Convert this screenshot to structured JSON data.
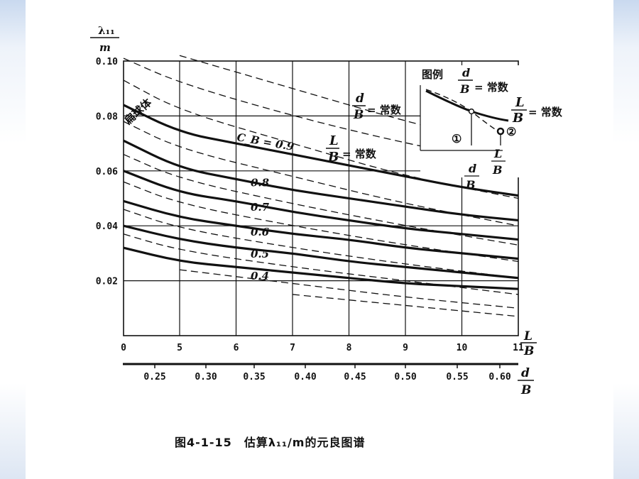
{
  "chart_data": {
    "type": "line",
    "caption": "图4-1-15　估算λ₁₁/m的元良图谱",
    "ylabel_top": "λ₁₁",
    "ylabel_bottom": "m",
    "xlabel_top": "L",
    "xlabel_bottom": "B",
    "x2label_top": "d",
    "x2label_bottom": "B",
    "x_ticks": [
      "0",
      "5",
      "6",
      "7",
      "8",
      "9",
      "10",
      "11"
    ],
    "x2_ticks": [
      "0.25",
      "0.30",
      "0.35",
      "0.40",
      "0.45",
      "0.50",
      "0.55",
      "0.60"
    ],
    "y_ticks": [
      "0.10",
      "0.08",
      "0.06",
      "0.04",
      "0.02"
    ],
    "ylim": [
      0,
      0.1
    ],
    "solid_curve_label": "L/B = 常数",
    "dashed_curve_label": "d/B = 常数",
    "cb_label": "C_B = 0.9",
    "ellipsoid_label": "扁球体",
    "series": [
      {
        "name": "0.9",
        "x": [
          0,
          5,
          6,
          7,
          8,
          9,
          10,
          11
        ],
        "values": [
          0.084,
          0.074,
          0.07,
          0.066,
          0.062,
          0.058,
          0.054,
          0.051
        ]
      },
      {
        "name": "0.8",
        "x": [
          0,
          5,
          6,
          7,
          8,
          9,
          10,
          11
        ],
        "values": [
          0.071,
          0.061,
          0.057,
          0.053,
          0.05,
          0.047,
          0.044,
          0.042
        ]
      },
      {
        "name": "0.7",
        "x": [
          0,
          5,
          6,
          7,
          8,
          9,
          10,
          11
        ],
        "values": [
          0.06,
          0.052,
          0.049,
          0.045,
          0.042,
          0.039,
          0.037,
          0.035
        ]
      },
      {
        "name": "0.6",
        "x": [
          0,
          5,
          6,
          7,
          8,
          9,
          10,
          11
        ],
        "values": [
          0.049,
          0.043,
          0.04,
          0.037,
          0.035,
          0.032,
          0.03,
          0.028
        ]
      },
      {
        "name": "0.5",
        "x": [
          0,
          5,
          6,
          7,
          8,
          9,
          10,
          11
        ],
        "values": [
          0.04,
          0.035,
          0.032,
          0.03,
          0.027,
          0.025,
          0.023,
          0.021
        ]
      },
      {
        "name": "0.4",
        "x": [
          0,
          5,
          6,
          7,
          8,
          9,
          10,
          11
        ],
        "values": [
          0.032,
          0.027,
          0.025,
          0.023,
          0.021,
          0.019,
          0.018,
          0.017
        ]
      }
    ],
    "legend": {
      "title": "图例",
      "dashed_label": "d/B = 常数",
      "solid_label": "L/B = 常数",
      "marker1": "①",
      "marker2": "②",
      "axis1": "d/B",
      "axis2": "L/B"
    }
  }
}
